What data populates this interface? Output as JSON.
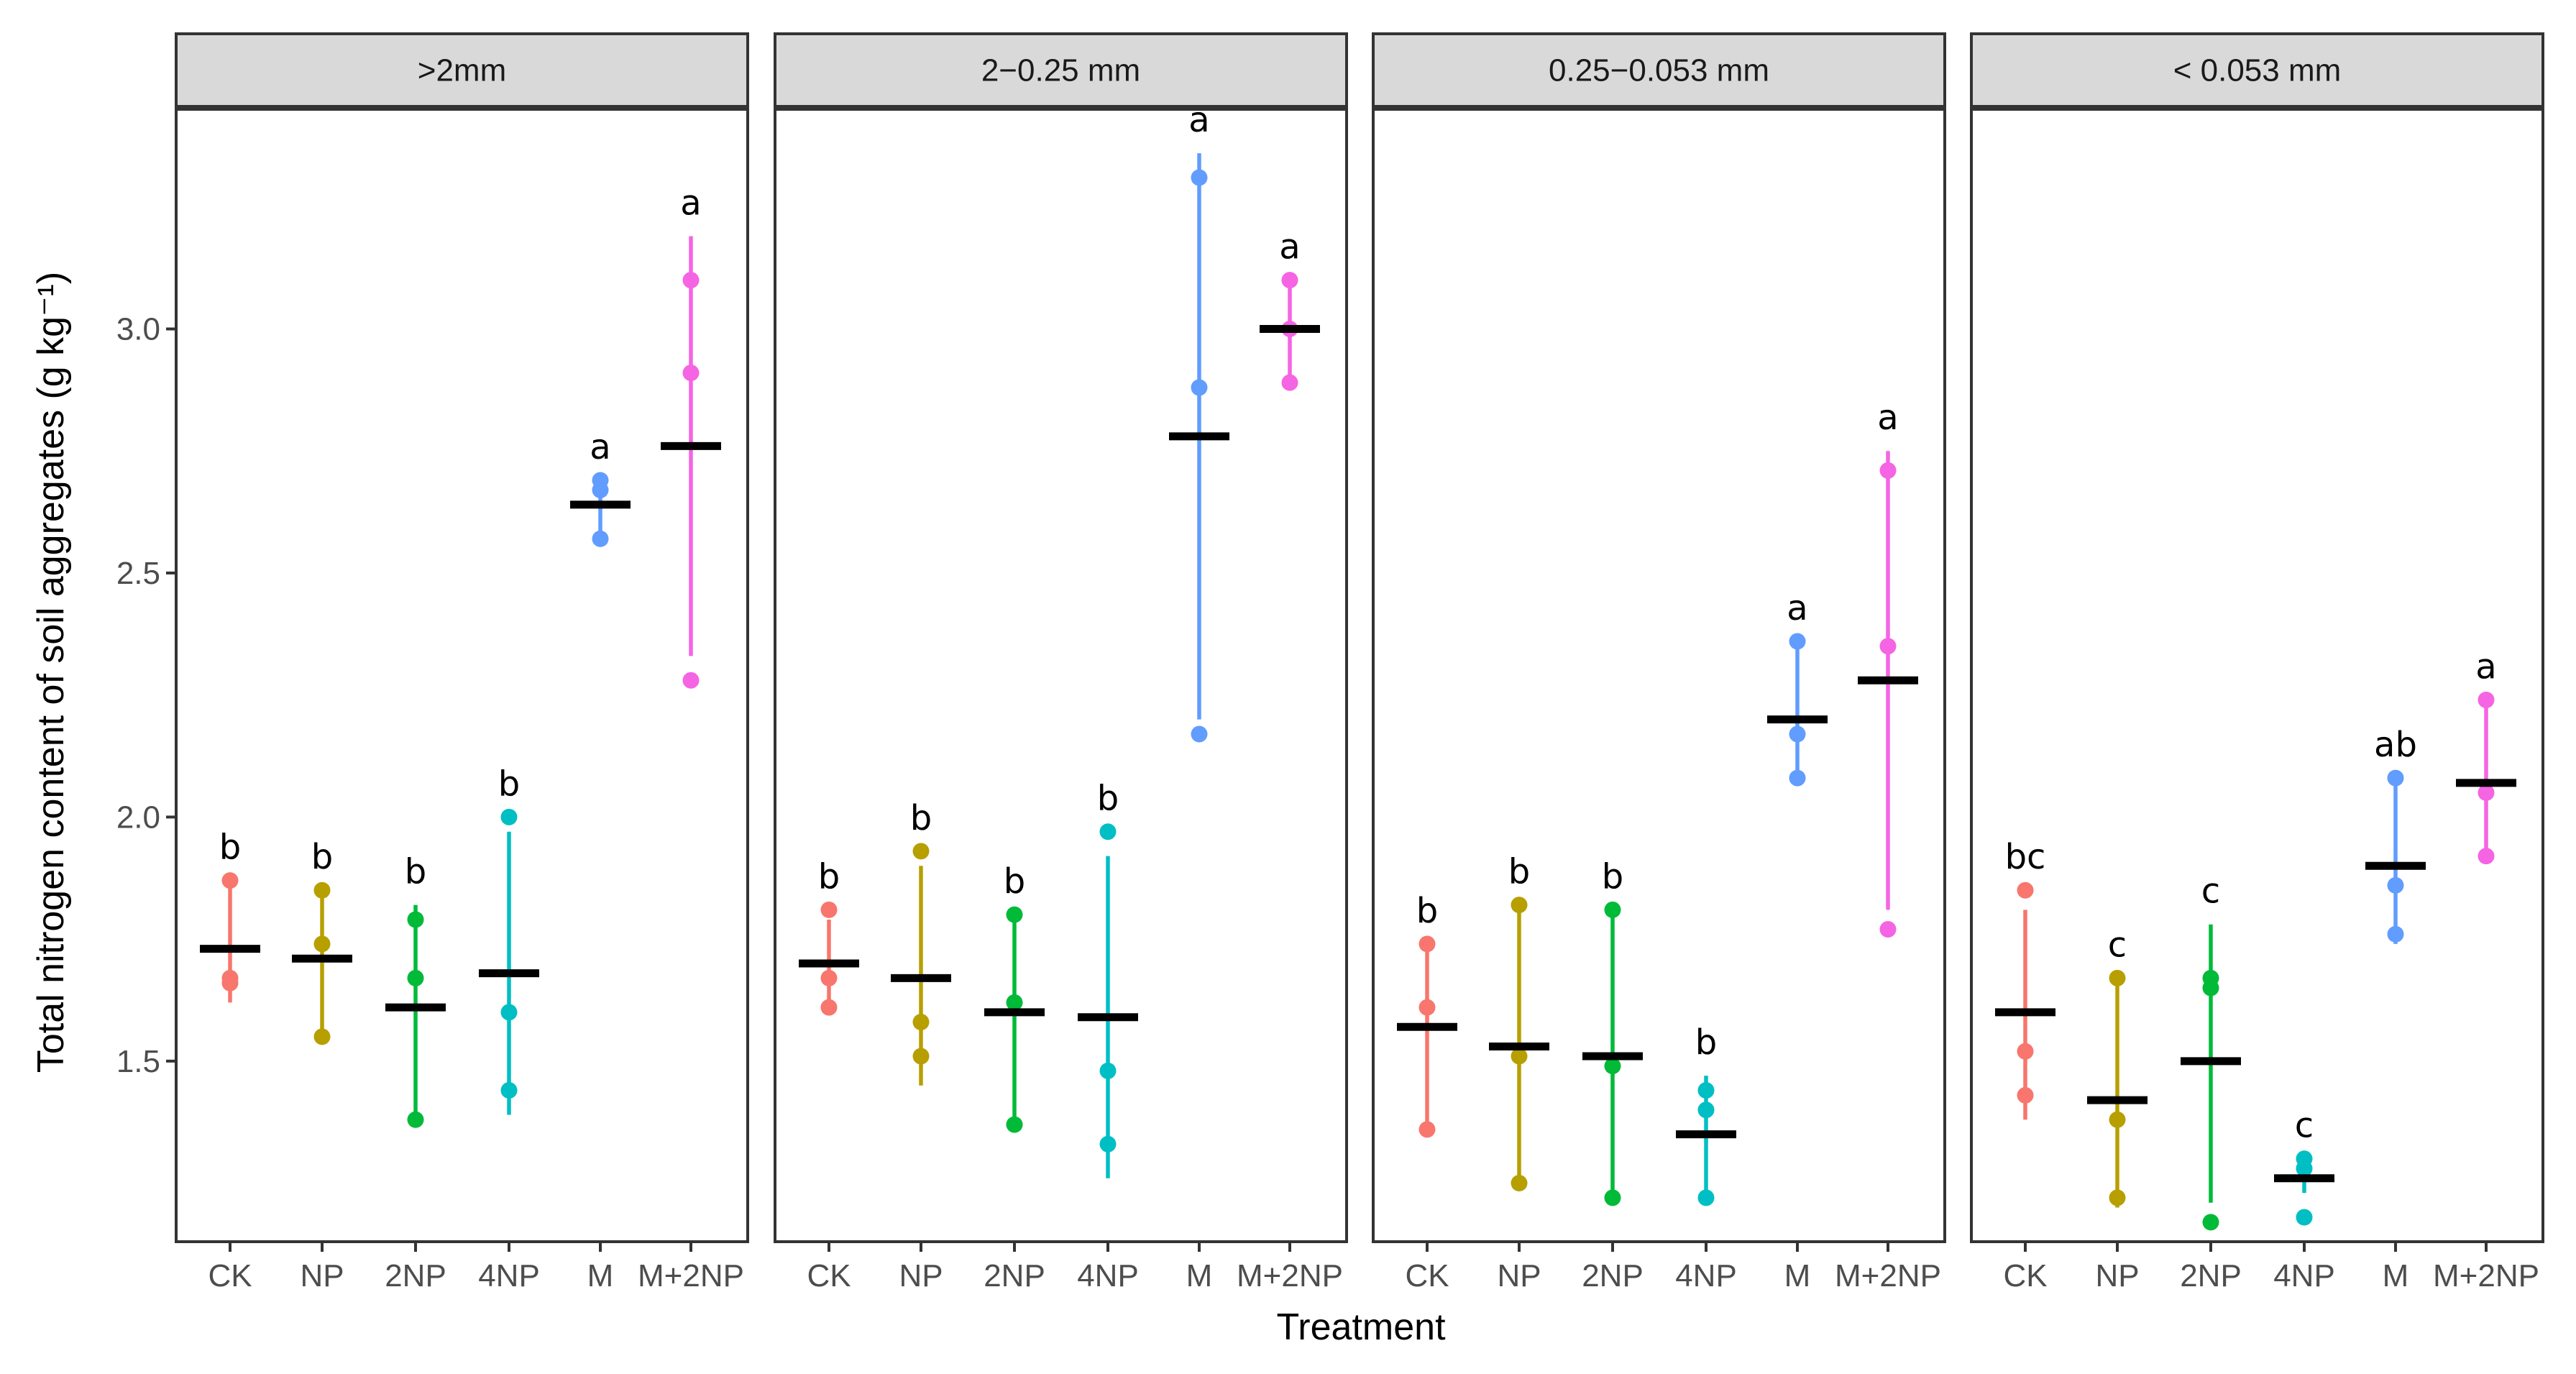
{
  "chart_data": {
    "type": "scatter",
    "subtype": "faceted dot plot with mean bars and range lines",
    "xlabel": "Treatment",
    "ylabel": "Total nitrogen content of soil aggregates (g kg⁻¹)",
    "ylim": [
      1.13,
      3.45
    ],
    "yticks": [
      1.5,
      2.0,
      2.5,
      3.0
    ],
    "ytick_labels": [
      "1.5",
      "2.0",
      "2.5",
      "3.0"
    ],
    "categories": [
      "CK",
      "NP",
      "2NP",
      "4NP",
      "M",
      "M+2NP"
    ],
    "category_colors": [
      "#F8766D",
      "#B79F00",
      "#00BA38",
      "#00BFC4",
      "#619CFF",
      "#F564E3"
    ],
    "mean_bar_color": "#000000",
    "grid": false,
    "legend": "none",
    "facets": [
      {
        "title": ">2mm",
        "groups": [
          {
            "treatment": "CK",
            "points": [
              1.87,
              1.67,
              1.66
            ],
            "mean": 1.73,
            "range": [
              1.62,
              1.87
            ],
            "letter": "b"
          },
          {
            "treatment": "NP",
            "points": [
              1.85,
              1.74,
              1.55
            ],
            "mean": 1.71,
            "range": [
              1.55,
              1.85
            ],
            "letter": "b"
          },
          {
            "treatment": "2NP",
            "points": [
              1.79,
              1.67,
              1.38
            ],
            "mean": 1.61,
            "range": [
              1.38,
              1.82
            ],
            "letter": "b"
          },
          {
            "treatment": "4NP",
            "points": [
              2.0,
              1.6,
              1.44
            ],
            "mean": 1.68,
            "range": [
              1.39,
              1.97
            ],
            "letter": "b"
          },
          {
            "treatment": "M",
            "points": [
              2.69,
              2.67,
              2.57
            ],
            "mean": 2.64,
            "range": [
              2.57,
              2.69
            ],
            "letter": "a"
          },
          {
            "treatment": "M+2NP",
            "points": [
              3.1,
              2.91,
              2.28
            ],
            "mean": 2.76,
            "range": [
              2.33,
              3.19
            ],
            "letter": "a"
          }
        ]
      },
      {
        "title": "2−0.25 mm",
        "groups": [
          {
            "treatment": "CK",
            "points": [
              1.81,
              1.67,
              1.61
            ],
            "mean": 1.7,
            "range": [
              1.61,
              1.79
            ],
            "letter": "b"
          },
          {
            "treatment": "NP",
            "points": [
              1.93,
              1.58,
              1.51
            ],
            "mean": 1.67,
            "range": [
              1.45,
              1.9
            ],
            "letter": "b"
          },
          {
            "treatment": "2NP",
            "points": [
              1.8,
              1.62,
              1.37
            ],
            "mean": 1.6,
            "range": [
              1.37,
              1.8
            ],
            "letter": "b"
          },
          {
            "treatment": "4NP",
            "points": [
              1.97,
              1.48,
              1.33
            ],
            "mean": 1.59,
            "range": [
              1.26,
              1.92
            ],
            "letter": "b"
          },
          {
            "treatment": "M",
            "points": [
              3.31,
              2.88,
              2.17
            ],
            "mean": 2.78,
            "range": [
              2.2,
              3.36
            ],
            "letter": "a"
          },
          {
            "treatment": "M+2NP",
            "points": [
              3.1,
              3.0,
              2.89
            ],
            "mean": 3.0,
            "range": [
              2.89,
              3.1
            ],
            "letter": "a"
          }
        ]
      },
      {
        "title": "0.25−0.053 mm",
        "groups": [
          {
            "treatment": "CK",
            "points": [
              1.74,
              1.61,
              1.36
            ],
            "mean": 1.57,
            "range": [
              1.37,
              1.74
            ],
            "letter": "b"
          },
          {
            "treatment": "NP",
            "points": [
              1.82,
              1.51,
              1.25
            ],
            "mean": 1.53,
            "range": [
              1.25,
              1.82
            ],
            "letter": "b"
          },
          {
            "treatment": "2NP",
            "points": [
              1.81,
              1.49,
              1.22
            ],
            "mean": 1.51,
            "range": [
              1.22,
              1.81
            ],
            "letter": "b"
          },
          {
            "treatment": "4NP",
            "points": [
              1.44,
              1.4,
              1.22
            ],
            "mean": 1.35,
            "range": [
              1.22,
              1.47
            ],
            "letter": "b"
          },
          {
            "treatment": "M",
            "points": [
              2.36,
              2.17,
              2.08
            ],
            "mean": 2.2,
            "range": [
              2.08,
              2.36
            ],
            "letter": "a"
          },
          {
            "treatment": "M+2NP",
            "points": [
              2.71,
              2.35,
              1.77
            ],
            "mean": 2.28,
            "range": [
              1.81,
              2.75
            ],
            "letter": "a"
          }
        ]
      },
      {
        "title": "< 0.053 mm",
        "groups": [
          {
            "treatment": "CK",
            "points": [
              1.85,
              1.52,
              1.43
            ],
            "mean": 1.6,
            "range": [
              1.38,
              1.81
            ],
            "letter": "bc"
          },
          {
            "treatment": "NP",
            "points": [
              1.67,
              1.38,
              1.22
            ],
            "mean": 1.42,
            "range": [
              1.2,
              1.67
            ],
            "letter": "c"
          },
          {
            "treatment": "2NP",
            "points": [
              1.67,
              1.65,
              1.17
            ],
            "mean": 1.5,
            "range": [
              1.21,
              1.78
            ],
            "letter": "c"
          },
          {
            "treatment": "4NP",
            "points": [
              1.3,
              1.28,
              1.18
            ],
            "mean": 1.26,
            "range": [
              1.23,
              1.3
            ],
            "letter": "c"
          },
          {
            "treatment": "M",
            "points": [
              2.08,
              1.86,
              1.76
            ],
            "mean": 1.9,
            "range": [
              1.74,
              2.08
            ],
            "letter": "ab"
          },
          {
            "treatment": "M+2NP",
            "points": [
              2.24,
              2.05,
              1.92
            ],
            "mean": 2.07,
            "range": [
              1.92,
              2.24
            ],
            "letter": "a"
          }
        ]
      }
    ]
  }
}
